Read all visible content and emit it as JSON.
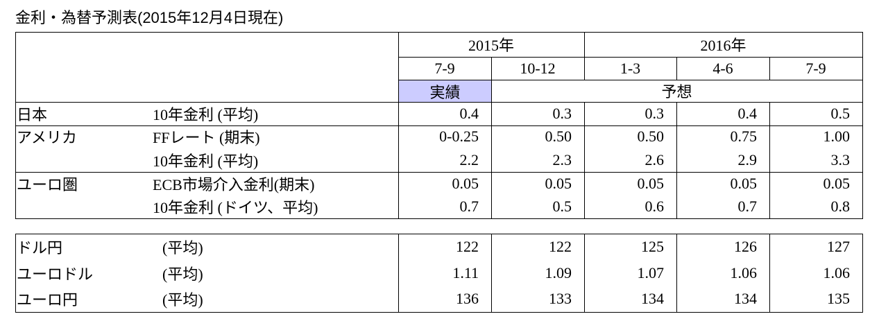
{
  "title": "金利・為替予測表(2015年12月4日現在)",
  "table1": {
    "years": [
      "2015年",
      "2016年"
    ],
    "periods": [
      "7-9",
      "10-12",
      "1-3",
      "4-6",
      "7-9"
    ],
    "status": [
      "実績",
      "予想"
    ],
    "groups": [
      {
        "region": "日本",
        "items": [
          {
            "item": "10年金利 (平均)",
            "values": [
              "0.4",
              "0.3",
              "0.3",
              "0.4",
              "0.5"
            ]
          }
        ]
      },
      {
        "region": "アメリカ",
        "items": [
          {
            "item": "FFレート (期末)",
            "values": [
              "0-0.25",
              "0.50",
              "0.50",
              "0.75",
              "1.00"
            ]
          },
          {
            "item": "10年金利 (平均)",
            "values": [
              "2.2",
              "2.3",
              "2.6",
              "2.9",
              "3.3"
            ]
          }
        ]
      },
      {
        "region": "ユーロ圏",
        "items": [
          {
            "item": "ECB市場介入金利(期末)",
            "values": [
              "0.05",
              "0.05",
              "0.05",
              "0.05",
              "0.05"
            ]
          },
          {
            "item": "10年金利 (ドイツ、平均)",
            "values": [
              "0.7",
              "0.5",
              "0.6",
              "0.7",
              "0.8"
            ]
          }
        ]
      }
    ]
  },
  "table2": {
    "rows": [
      {
        "label": "ドル円",
        "note": "(平均)",
        "values": [
          "122",
          "122",
          "125",
          "126",
          "127"
        ]
      },
      {
        "label": "ユーロドル",
        "note": "(平均)",
        "values": [
          "1.11",
          "1.09",
          "1.07",
          "1.06",
          "1.06"
        ]
      },
      {
        "label": "ユーロ円",
        "note": "(平均)",
        "values": [
          "136",
          "133",
          "134",
          "134",
          "135"
        ]
      }
    ]
  }
}
